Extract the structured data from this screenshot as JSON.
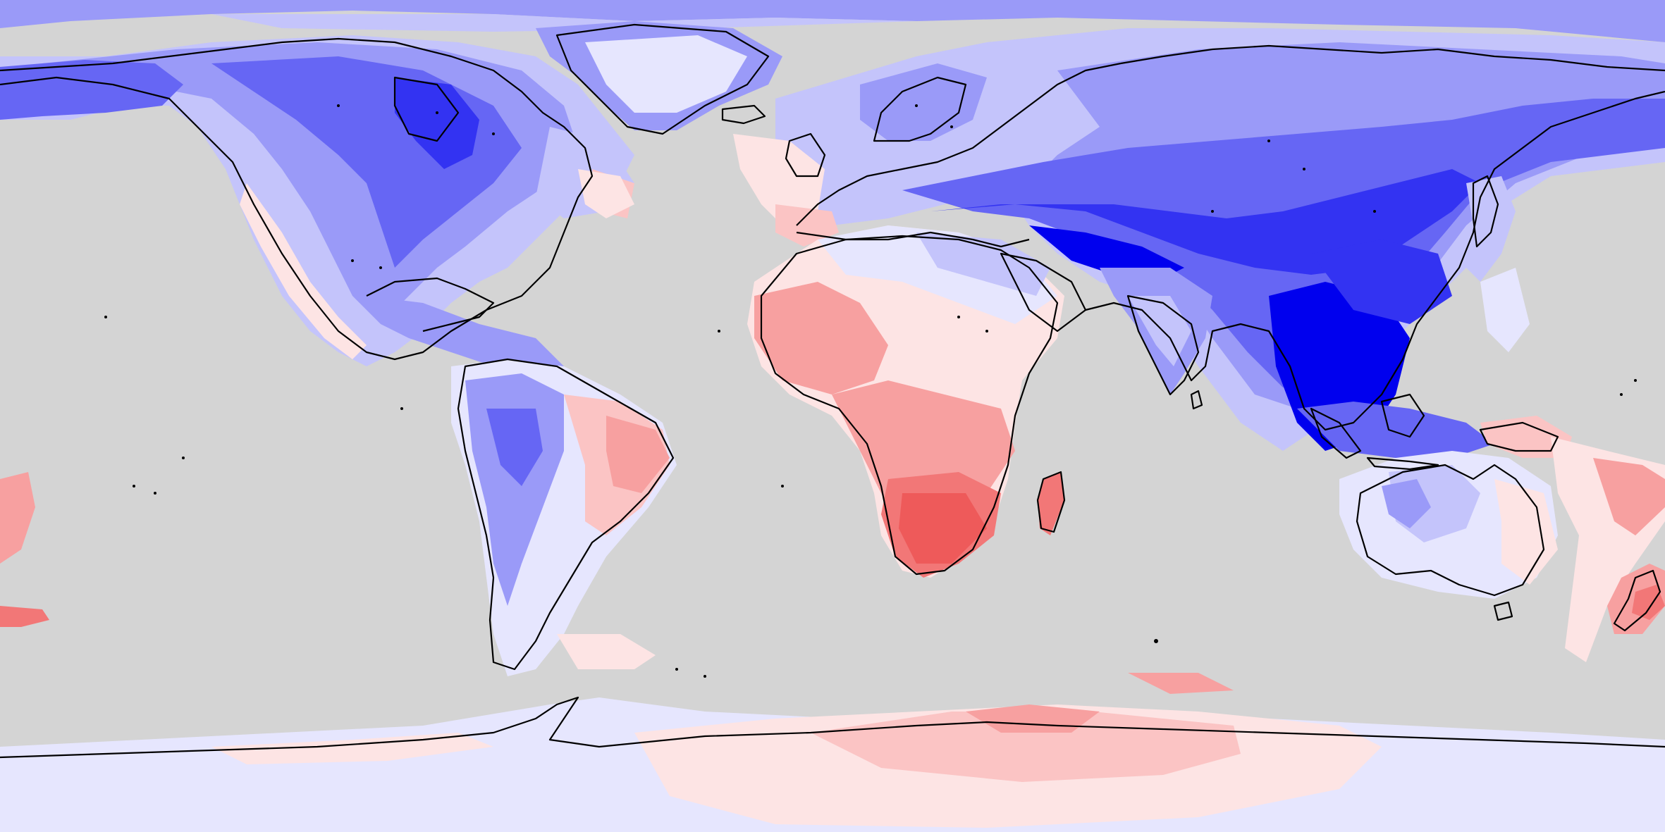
{
  "map": {
    "projection": "equirectangular",
    "extent": {
      "lon": [
        -180,
        180
      ],
      "lat": [
        -90,
        90
      ]
    },
    "background_color": "#d4d4d4",
    "coastline_color": "#000000",
    "palette": {
      "blue_5": "#0000ee",
      "blue_4": "#3333f2",
      "blue_3": "#6666f4",
      "blue_2": "#9a9af8",
      "blue_1": "#c4c4fb",
      "blue_0": "#e6e6fe",
      "red_0": "#fde4e4",
      "red_1": "#fbc4c4",
      "red_2": "#f7a0a0",
      "red_3": "#f27777",
      "red_4": "#ee5a5a"
    }
  }
}
